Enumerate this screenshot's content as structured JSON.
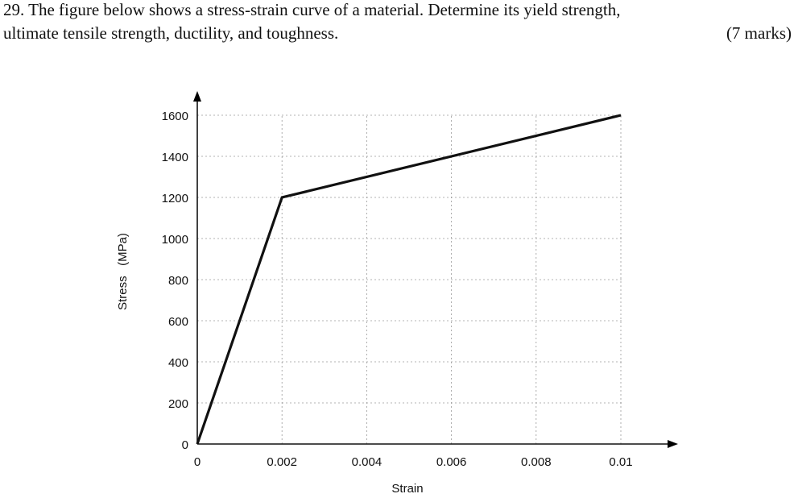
{
  "question": {
    "line1": "29. The figure below shows a stress-strain curve of a material. Determine its yield strength,",
    "line2": "ultimate tensile strength, ductility, and toughness.",
    "marks": "(7 marks)"
  },
  "chart_data": {
    "type": "line",
    "xlabel": "Strain",
    "ylabel": "Stress   (MPa)",
    "xlim": [
      0,
      0.011
    ],
    "ylim": [
      0,
      1700
    ],
    "x_ticks": [
      0,
      0.002,
      0.004,
      0.006,
      0.008,
      0.01
    ],
    "x_tick_labels": [
      "0",
      "0.002",
      "0.004",
      "0.006",
      "0.008",
      "0.01"
    ],
    "y_ticks": [
      0,
      200,
      400,
      600,
      800,
      1000,
      1200,
      1400,
      1600
    ],
    "y_tick_labels": [
      "0",
      "200",
      "400",
      "600",
      "800",
      "1000",
      "1200",
      "1400",
      "1600"
    ],
    "grid": true,
    "series": [
      {
        "x": [
          0,
          0.002,
          0.01
        ],
        "y": [
          0,
          1200,
          1600
        ]
      }
    ],
    "line_color": "#111111",
    "grid_color": "#9a9a9a"
  }
}
